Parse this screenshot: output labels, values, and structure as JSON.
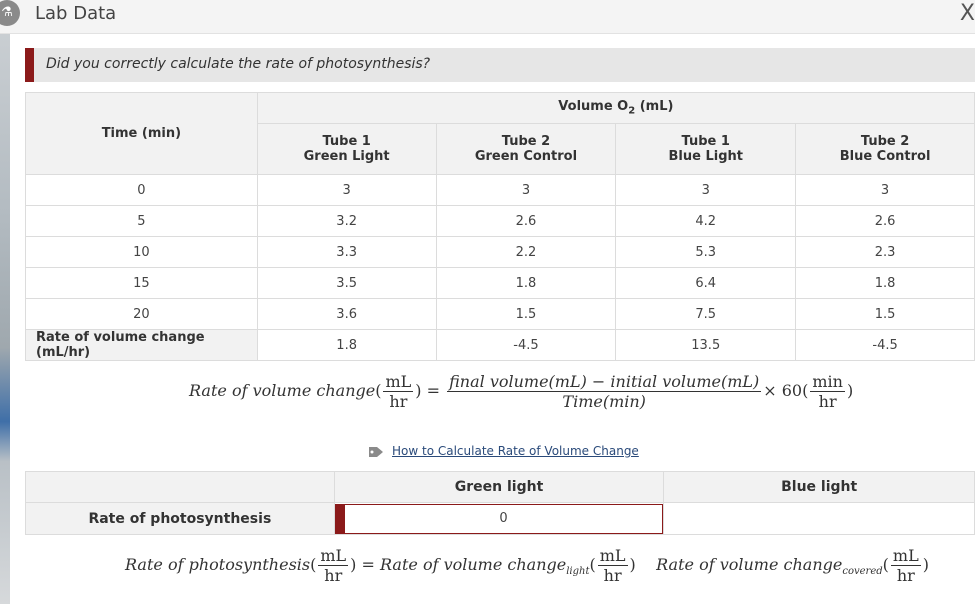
{
  "window": {
    "title": "Lab Data",
    "close_label": "X",
    "icon": "flask-icon"
  },
  "banner": {
    "text": "Did you correctly calculate the rate of photosynthesis?"
  },
  "volume_table": {
    "group_header": "Volume O",
    "group_header_sub": "2",
    "group_header_unit": " (mL)",
    "time_header": "Time (min)",
    "columns": [
      {
        "line1": "Tube 1",
        "line2": "Green Light"
      },
      {
        "line1": "Tube 2",
        "line2": "Green Control"
      },
      {
        "line1": "Tube 1",
        "line2": "Blue Light"
      },
      {
        "line1": "Tube 2",
        "line2": "Blue Control"
      }
    ],
    "rows": [
      {
        "time": "0",
        "values": [
          "3",
          "3",
          "3",
          "3"
        ]
      },
      {
        "time": "5",
        "values": [
          "3.2",
          "2.6",
          "4.2",
          "2.6"
        ]
      },
      {
        "time": "10",
        "values": [
          "3.3",
          "2.2",
          "5.3",
          "2.3"
        ]
      },
      {
        "time": "15",
        "values": [
          "3.5",
          "1.8",
          "6.4",
          "1.8"
        ]
      },
      {
        "time": "20",
        "values": [
          "3.6",
          "1.5",
          "7.5",
          "1.5"
        ]
      }
    ],
    "rate_row": {
      "label": "Rate of volume change (mL/hr)",
      "values": [
        "1.8",
        "-4.5",
        "13.5",
        "-4.5"
      ]
    }
  },
  "formula1": {
    "lhs": "Rate of volume change",
    "unit_num": "mL",
    "unit_den": "hr",
    "numerator": "final volume(mL) − initial volume(mL)",
    "denominator": "Time(min)",
    "multiplier": "× 60",
    "mult_num": "min",
    "mult_den": "hr"
  },
  "help_link": {
    "text": "How to Calculate Rate of Volume Change",
    "icon": "tag-icon"
  },
  "photo_table": {
    "headers": [
      "Green light",
      "Blue light"
    ],
    "row_label": "Rate of photosynthesis",
    "green_value": "0",
    "blue_value": ""
  },
  "formula2": {
    "lhs": "Rate of photosynthesis",
    "unit_num": "mL",
    "unit_den": "hr",
    "term1": "Rate of volume change",
    "term1_sub": "light",
    "term2": "Rate of volume change",
    "term2_sub": "covered"
  }
}
